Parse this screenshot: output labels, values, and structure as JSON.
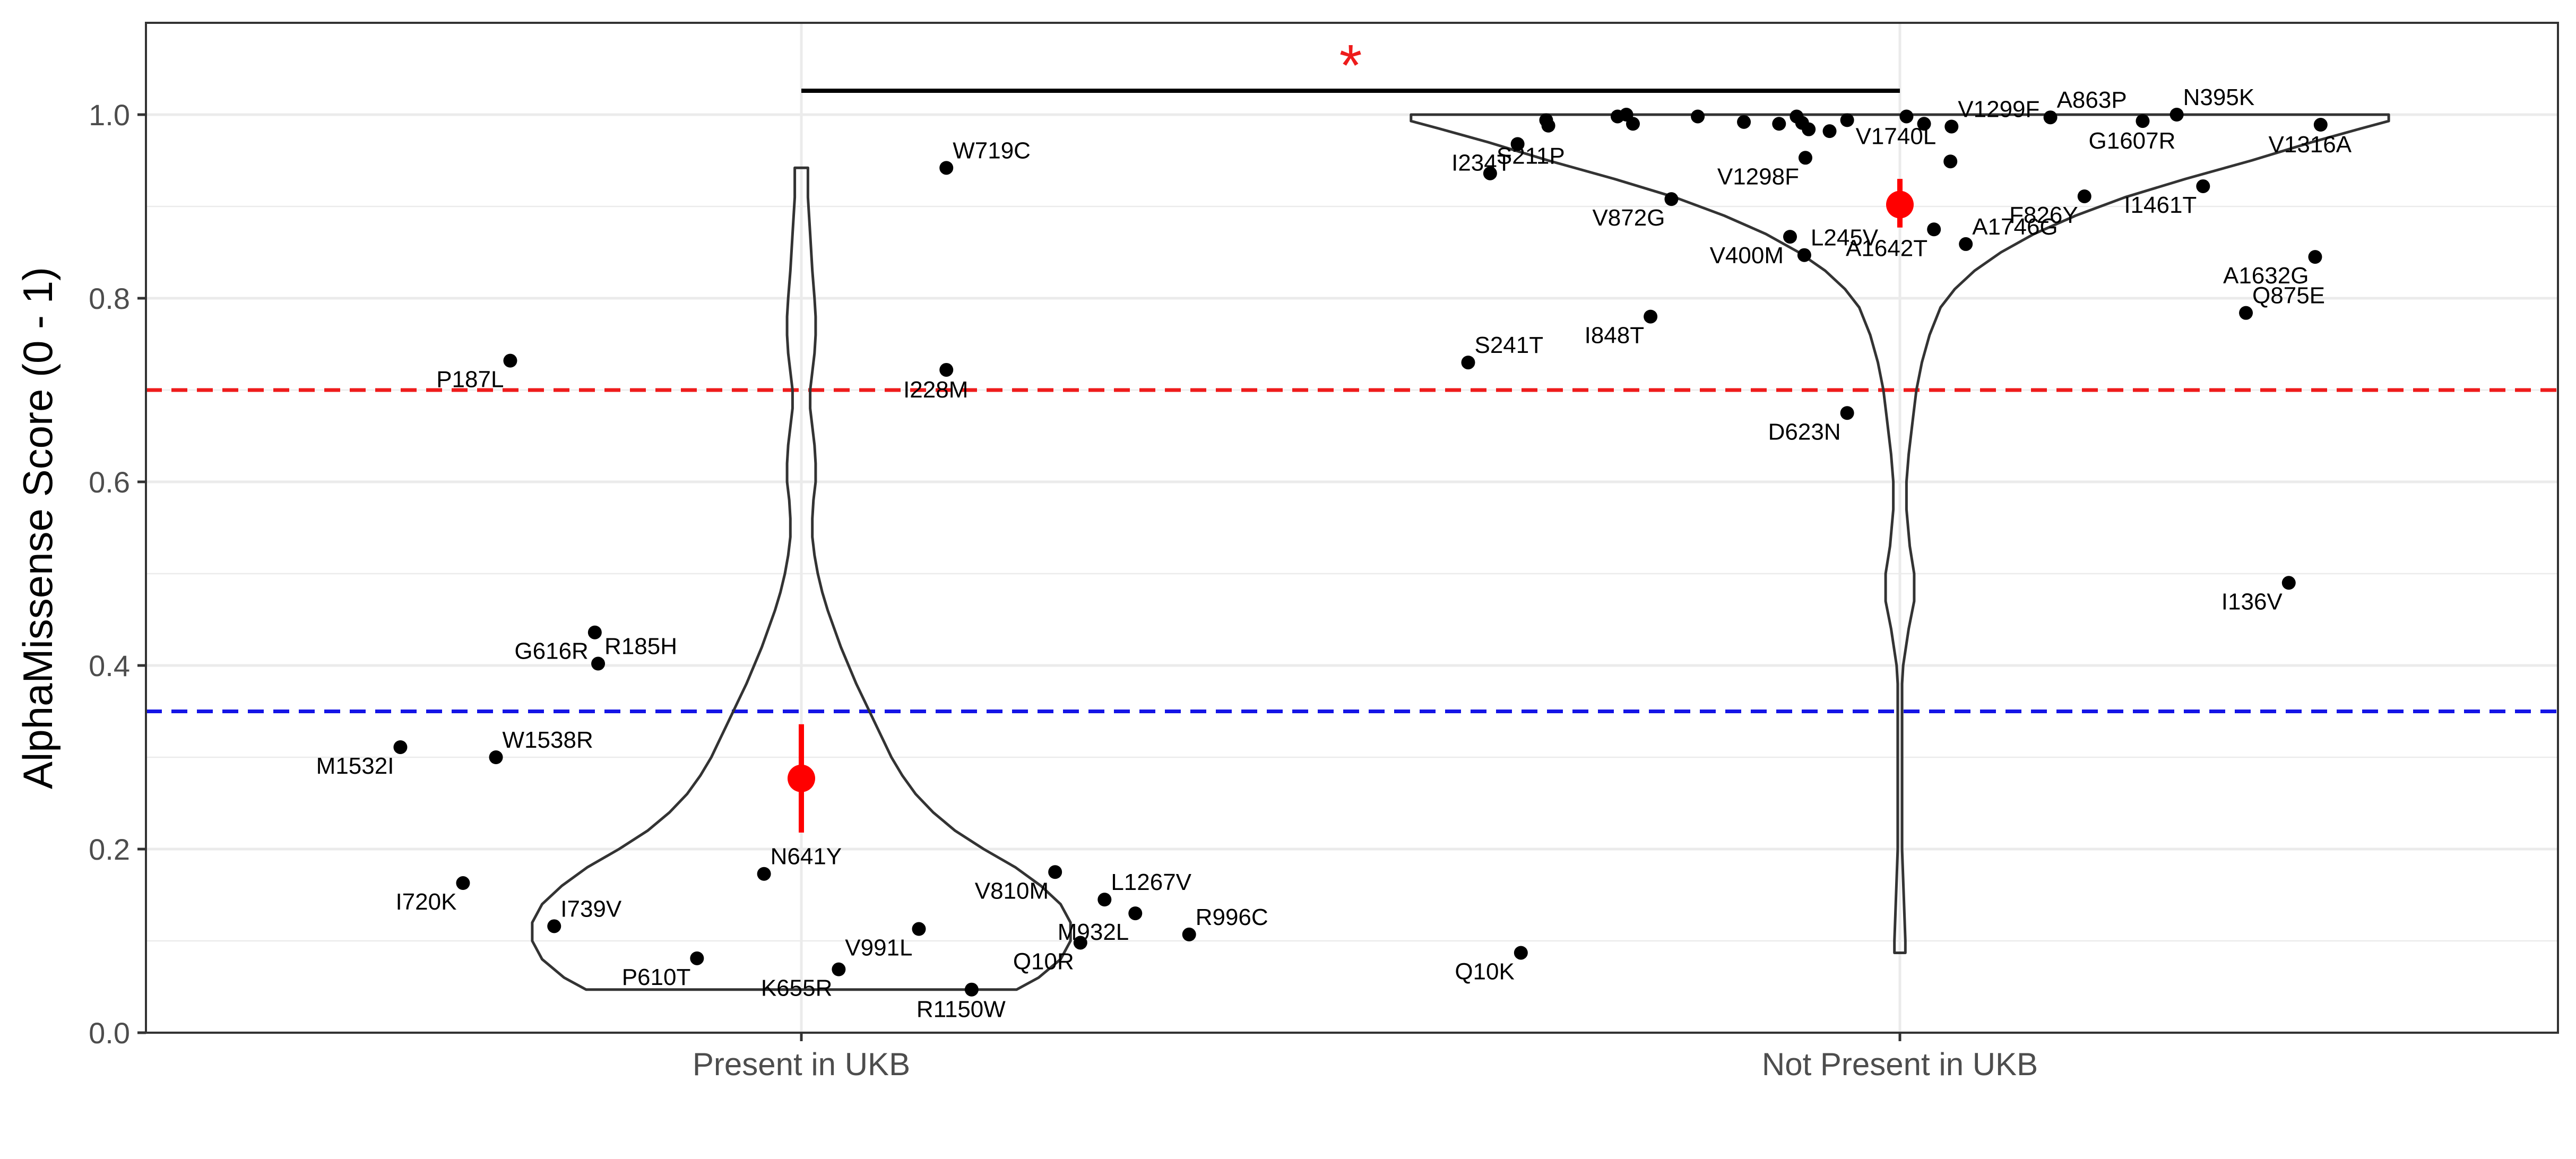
{
  "chart_data": {
    "type": "scatter",
    "subtype": "violin-with-jittered-points",
    "title": "",
    "xlabel": "",
    "ylabel": "AlphaMissense Score (0 - 1)",
    "categories": [
      "Present in UKB",
      "Not Present in UKB"
    ],
    "ylim": [
      0,
      1.1
    ],
    "yticks": [
      "0.0",
      "0.2",
      "0.4",
      "0.6",
      "0.8",
      "1.0"
    ],
    "grid": true,
    "legend": "none",
    "reference_lines": [
      {
        "y": 0.7,
        "color": "#ee1c1c",
        "style": "dashed"
      },
      {
        "y": 0.35,
        "color": "#1414e6",
        "style": "dashed"
      }
    ],
    "significance": {
      "label": "*",
      "from": "Present in UKB",
      "to": "Not Present in UKB",
      "y": 1.026,
      "color": "#ee1c1c"
    },
    "summary": [
      {
        "category": "Present in UKB",
        "mean": 0.277,
        "lower": 0.218,
        "upper": 0.336,
        "color": "#ff0000"
      },
      {
        "category": "Not Present in UKB",
        "mean": 0.902,
        "lower": 0.877,
        "upper": 0.93,
        "color": "#ff0000"
      }
    ],
    "violins": [
      {
        "category": "Present in UKB",
        "profile": [
          [
            0.047,
            0.196
          ],
          [
            0.06,
            0.216
          ],
          [
            0.08,
            0.236
          ],
          [
            0.1,
            0.245
          ],
          [
            0.12,
            0.245
          ],
          [
            0.14,
            0.236
          ],
          [
            0.16,
            0.218
          ],
          [
            0.18,
            0.195
          ],
          [
            0.2,
            0.166
          ],
          [
            0.22,
            0.14
          ],
          [
            0.24,
            0.12
          ],
          [
            0.26,
            0.104
          ],
          [
            0.28,
            0.092
          ],
          [
            0.3,
            0.082
          ],
          [
            0.32,
            0.074
          ],
          [
            0.34,
            0.066
          ],
          [
            0.36,
            0.058
          ],
          [
            0.38,
            0.05
          ],
          [
            0.4,
            0.043
          ],
          [
            0.42,
            0.036
          ],
          [
            0.44,
            0.03
          ],
          [
            0.46,
            0.024
          ],
          [
            0.48,
            0.019
          ],
          [
            0.5,
            0.015
          ],
          [
            0.52,
            0.012
          ],
          [
            0.54,
            0.01
          ],
          [
            0.56,
            0.01
          ],
          [
            0.58,
            0.011
          ],
          [
            0.6,
            0.013
          ],
          [
            0.62,
            0.013
          ],
          [
            0.64,
            0.012
          ],
          [
            0.66,
            0.01
          ],
          [
            0.68,
            0.008
          ],
          [
            0.7,
            0.008
          ],
          [
            0.72,
            0.01
          ],
          [
            0.74,
            0.012
          ],
          [
            0.76,
            0.013
          ],
          [
            0.78,
            0.013
          ],
          [
            0.8,
            0.012
          ],
          [
            0.83,
            0.01
          ],
          [
            0.87,
            0.008
          ],
          [
            0.91,
            0.006
          ],
          [
            0.942,
            0.006
          ]
        ]
      },
      {
        "category": "Not Present in UKB",
        "profile": [
          [
            0.087,
            0.005
          ],
          [
            0.1,
            0.005
          ],
          [
            0.2,
            0.002
          ],
          [
            0.3,
            0.002
          ],
          [
            0.38,
            0.002
          ],
          [
            0.4,
            0.003
          ],
          [
            0.44,
            0.008
          ],
          [
            0.47,
            0.013
          ],
          [
            0.5,
            0.013
          ],
          [
            0.53,
            0.009
          ],
          [
            0.57,
            0.006
          ],
          [
            0.6,
            0.006
          ],
          [
            0.63,
            0.008
          ],
          [
            0.67,
            0.012
          ],
          [
            0.7,
            0.015
          ],
          [
            0.73,
            0.02
          ],
          [
            0.76,
            0.027
          ],
          [
            0.79,
            0.037
          ],
          [
            0.81,
            0.05
          ],
          [
            0.83,
            0.068
          ],
          [
            0.85,
            0.092
          ],
          [
            0.87,
            0.122
          ],
          [
            0.89,
            0.16
          ],
          [
            0.91,
            0.205
          ],
          [
            0.93,
            0.26
          ],
          [
            0.95,
            0.32
          ],
          [
            0.97,
            0.375
          ],
          [
            0.985,
            0.42
          ],
          [
            0.993,
            0.445
          ],
          [
            1.0,
            0.445
          ]
        ]
      }
    ],
    "points": [
      {
        "category": "Present in UKB",
        "x_offset": -0.265,
        "y": 0.732,
        "label": "P187L",
        "label_pos": "left"
      },
      {
        "category": "Present in UKB",
        "x_offset": 0.132,
        "y": 0.722,
        "label": "I228M",
        "label_pos": "below"
      },
      {
        "category": "Present in UKB",
        "x_offset": 0.132,
        "y": 0.942,
        "label": "W719C",
        "label_pos": "right"
      },
      {
        "category": "Present in UKB",
        "x_offset": -0.188,
        "y": 0.436,
        "label": "G616R",
        "label_pos": "left"
      },
      {
        "category": "Present in UKB",
        "x_offset": -0.185,
        "y": 0.402,
        "label": "R185H",
        "label_pos": "right"
      },
      {
        "category": "Present in UKB",
        "x_offset": -0.365,
        "y": 0.311,
        "label": "M1532I",
        "label_pos": "left"
      },
      {
        "category": "Present in UKB",
        "x_offset": -0.278,
        "y": 0.3,
        "label": "W1538R",
        "label_pos": "right"
      },
      {
        "category": "Present in UKB",
        "x_offset": -0.308,
        "y": 0.163,
        "label": "I720K",
        "label_pos": "left"
      },
      {
        "category": "Present in UKB",
        "x_offset": -0.225,
        "y": 0.116,
        "label": "I739V",
        "label_pos": "right"
      },
      {
        "category": "Present in UKB",
        "x_offset": -0.095,
        "y": 0.081,
        "label": "P610T",
        "label_pos": "left"
      },
      {
        "category": "Present in UKB",
        "x_offset": -0.034,
        "y": 0.173,
        "label": "N641Y",
        "label_pos": "right"
      },
      {
        "category": "Present in UKB",
        "x_offset": 0.034,
        "y": 0.069,
        "label": "K655R",
        "label_pos": "left"
      },
      {
        "category": "Present in UKB",
        "x_offset": 0.107,
        "y": 0.113,
        "label": "V991L",
        "label_pos": "left"
      },
      {
        "category": "Present in UKB",
        "x_offset": 0.155,
        "y": 0.047,
        "label": "R1150W",
        "label_pos": "below"
      },
      {
        "category": "Present in UKB",
        "x_offset": 0.231,
        "y": 0.175,
        "label": "V810M",
        "label_pos": "left"
      },
      {
        "category": "Present in UKB",
        "x_offset": 0.276,
        "y": 0.145,
        "label": "L1267V",
        "label_pos": "right"
      },
      {
        "category": "Present in UKB",
        "x_offset": 0.304,
        "y": 0.13,
        "label": "M932L",
        "label_pos": "left"
      },
      {
        "category": "Present in UKB",
        "x_offset": 0.254,
        "y": 0.098,
        "label": "Q10R",
        "label_pos": "left"
      },
      {
        "category": "Present in UKB",
        "x_offset": 0.353,
        "y": 0.107,
        "label": "R996C",
        "label_pos": "right"
      },
      {
        "category": "Not Present in UKB",
        "x_offset": -0.348,
        "y": 0.968,
        "label": "I234T",
        "label_pos": "left"
      },
      {
        "category": "Not Present in UKB",
        "x_offset": -0.373,
        "y": 0.936,
        "label": "S211P",
        "label_pos": "right"
      },
      {
        "category": "Not Present in UKB",
        "x_offset": -0.208,
        "y": 0.908,
        "label": "V872G",
        "label_pos": "left"
      },
      {
        "category": "Not Present in UKB",
        "x_offset": -0.086,
        "y": 0.953,
        "label": "V1298F",
        "label_pos": "left"
      },
      {
        "category": "Not Present in UKB",
        "x_offset": -0.1,
        "y": 0.867,
        "label": "V400M",
        "label_pos": "left"
      },
      {
        "category": "Not Present in UKB",
        "x_offset": -0.087,
        "y": 0.847,
        "label": "L245V",
        "label_pos": "right"
      },
      {
        "category": "Not Present in UKB",
        "x_offset": 0.006,
        "y": 0.998,
        "label": "V1740L",
        "label_pos": "below"
      },
      {
        "category": "Not Present in UKB",
        "x_offset": 0.031,
        "y": 0.875,
        "label": "A1642T",
        "label_pos": "left"
      },
      {
        "category": "Not Present in UKB",
        "x_offset": 0.06,
        "y": 0.859,
        "label": "A1746G",
        "label_pos": "right"
      },
      {
        "category": "Not Present in UKB",
        "x_offset": 0.047,
        "y": 0.987,
        "label": "V1299F",
        "label_pos": "right"
      },
      {
        "category": "Not Present in UKB",
        "x_offset": 0.137,
        "y": 0.997,
        "label": "A863P",
        "label_pos": "right"
      },
      {
        "category": "Not Present in UKB",
        "x_offset": 0.221,
        "y": 0.993,
        "label": "G1607R",
        "label_pos": "below"
      },
      {
        "category": "Not Present in UKB",
        "x_offset": 0.252,
        "y": 1.0,
        "label": "N395K",
        "label_pos": "right"
      },
      {
        "category": "Not Present in UKB",
        "x_offset": 0.383,
        "y": 0.989,
        "label": "V1316A",
        "label_pos": "below"
      },
      {
        "category": "Not Present in UKB",
        "x_offset": 0.168,
        "y": 0.911,
        "label": "F826Y",
        "label_pos": "left"
      },
      {
        "category": "Not Present in UKB",
        "x_offset": 0.276,
        "y": 0.922,
        "label": "I1461T",
        "label_pos": "left"
      },
      {
        "category": "Not Present in UKB",
        "x_offset": 0.378,
        "y": 0.845,
        "label": "A1632G",
        "label_pos": "left"
      },
      {
        "category": "Not Present in UKB",
        "x_offset": 0.315,
        "y": 0.784,
        "label": "Q875E",
        "label_pos": "right"
      },
      {
        "category": "Not Present in UKB",
        "x_offset": 0.354,
        "y": 0.49,
        "label": "I136V",
        "label_pos": "left"
      },
      {
        "category": "Not Present in UKB",
        "x_offset": -0.393,
        "y": 0.73,
        "label": "S241T",
        "label_pos": "right"
      },
      {
        "category": "Not Present in UKB",
        "x_offset": -0.227,
        "y": 0.78,
        "label": "I848T",
        "label_pos": "left"
      },
      {
        "category": "Not Present in UKB",
        "x_offset": -0.048,
        "y": 0.675,
        "label": "D623N",
        "label_pos": "left"
      },
      {
        "category": "Not Present in UKB",
        "x_offset": -0.345,
        "y": 0.087,
        "label": "Q10K",
        "label_pos": "left"
      },
      {
        "category": "Not Present in UKB",
        "x_offset": -0.322,
        "y": 0.994,
        "label": "",
        "label_pos": "none"
      },
      {
        "category": "Not Present in UKB",
        "x_offset": -0.32,
        "y": 0.988,
        "label": "",
        "label_pos": "none"
      },
      {
        "category": "Not Present in UKB",
        "x_offset": -0.257,
        "y": 0.998,
        "label": "",
        "label_pos": "none"
      },
      {
        "category": "Not Present in UKB",
        "x_offset": -0.249,
        "y": 1.0,
        "label": "",
        "label_pos": "none"
      },
      {
        "category": "Not Present in UKB",
        "x_offset": -0.243,
        "y": 0.99,
        "label": "",
        "label_pos": "none"
      },
      {
        "category": "Not Present in UKB",
        "x_offset": -0.184,
        "y": 0.998,
        "label": "",
        "label_pos": "none"
      },
      {
        "category": "Not Present in UKB",
        "x_offset": -0.142,
        "y": 0.992,
        "label": "",
        "label_pos": "none"
      },
      {
        "category": "Not Present in UKB",
        "x_offset": -0.11,
        "y": 0.99,
        "label": "",
        "label_pos": "none"
      },
      {
        "category": "Not Present in UKB",
        "x_offset": -0.094,
        "y": 0.998,
        "label": "",
        "label_pos": "none"
      },
      {
        "category": "Not Present in UKB",
        "x_offset": -0.089,
        "y": 0.991,
        "label": "",
        "label_pos": "none"
      },
      {
        "category": "Not Present in UKB",
        "x_offset": -0.083,
        "y": 0.984,
        "label": "",
        "label_pos": "none"
      },
      {
        "category": "Not Present in UKB",
        "x_offset": -0.064,
        "y": 0.982,
        "label": "",
        "label_pos": "none"
      },
      {
        "category": "Not Present in UKB",
        "x_offset": -0.048,
        "y": 0.994,
        "label": "",
        "label_pos": "none"
      },
      {
        "category": "Not Present in UKB",
        "x_offset": 0.022,
        "y": 0.99,
        "label": "",
        "label_pos": "none"
      },
      {
        "category": "Not Present in UKB",
        "x_offset": 0.046,
        "y": 0.949,
        "label": "",
        "label_pos": "none"
      }
    ]
  }
}
